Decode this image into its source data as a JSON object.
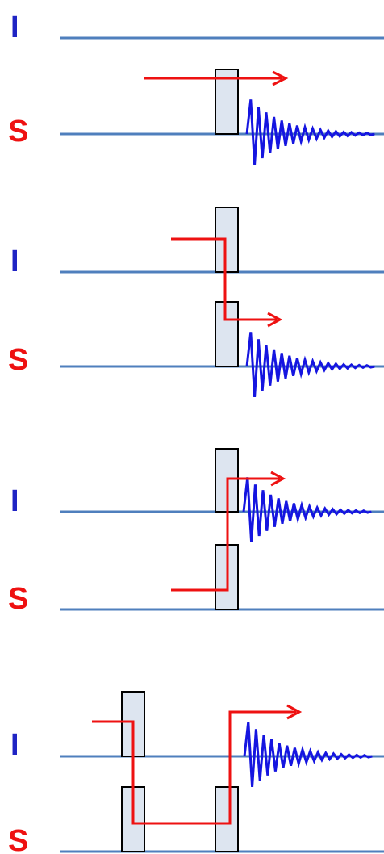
{
  "colors": {
    "baseline": "#4f7fbd",
    "label_I": "#1f24c4",
    "label_S": "#ee1111",
    "pulse_fill": "#dde5f0",
    "fid": "#1515e0",
    "arrow": "#ee1111"
  },
  "panels": [
    {
      "id": "panel-1",
      "description_free": true,
      "channels": [
        {
          "label": "I"
        },
        {
          "label": "S"
        }
      ]
    },
    {
      "id": "panel-2",
      "channels": [
        {
          "label": "I"
        },
        {
          "label": "S"
        }
      ]
    },
    {
      "id": "panel-3",
      "channels": [
        {
          "label": "I"
        },
        {
          "label": "S"
        }
      ]
    },
    {
      "id": "panel-4",
      "channels": [
        {
          "label": "I"
        },
        {
          "label": "S"
        }
      ]
    }
  ]
}
